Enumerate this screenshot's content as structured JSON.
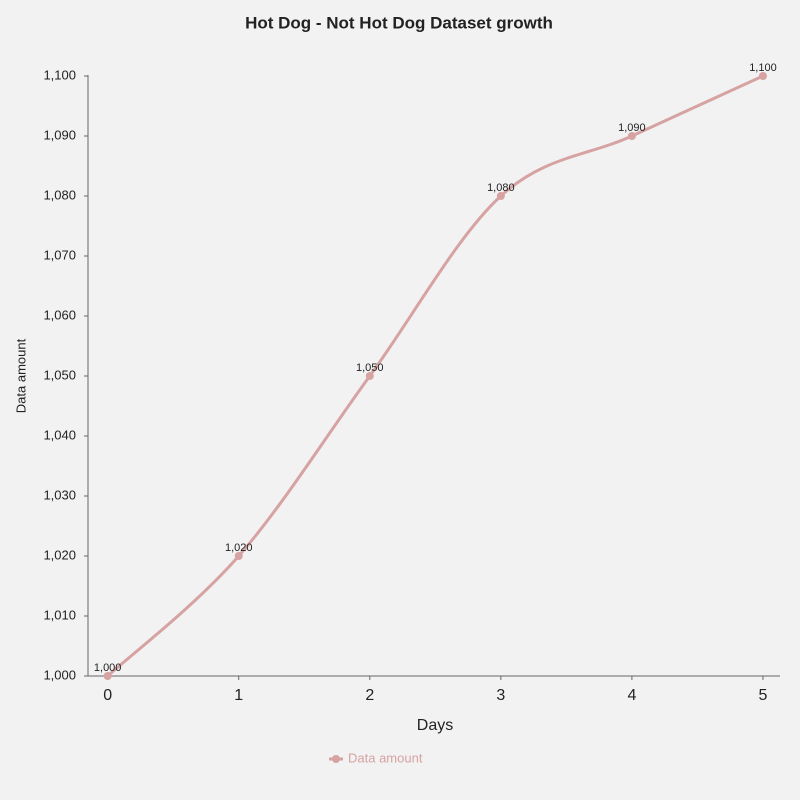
{
  "chart_data": {
    "type": "line",
    "title": "Hot Dog - Not Hot Dog Dataset growth",
    "x_label": "Days",
    "y_label": "Data amount",
    "x": [
      0,
      1,
      2,
      3,
      4,
      5
    ],
    "xlim": [
      -0.15,
      5.13
    ],
    "xticks": [
      0,
      1,
      2,
      3,
      4,
      5
    ],
    "ylim": [
      1000,
      1100
    ],
    "yticks": [
      {
        "value": 1000,
        "label": "1,000"
      },
      {
        "value": 1010,
        "label": "1,010"
      },
      {
        "value": 1020,
        "label": "1,020"
      },
      {
        "value": 1030,
        "label": "1,030"
      },
      {
        "value": 1040,
        "label": "1,040"
      },
      {
        "value": 1050,
        "label": "1,050"
      },
      {
        "value": 1060,
        "label": "1,060"
      },
      {
        "value": 1070,
        "label": "1,070"
      },
      {
        "value": 1080,
        "label": "1,080"
      },
      {
        "value": 1090,
        "label": "1,090"
      },
      {
        "value": 1100,
        "label": "1,100"
      }
    ],
    "smooth": true,
    "series": [
      {
        "name": "Data amount",
        "color": "#d6a2a2",
        "values": [
          1000,
          1020,
          1050,
          1080,
          1090,
          1100
        ],
        "value_labels": [
          "1,000",
          "1,020",
          "1,050",
          "1,080",
          "1,090",
          "1,100"
        ]
      }
    ]
  }
}
